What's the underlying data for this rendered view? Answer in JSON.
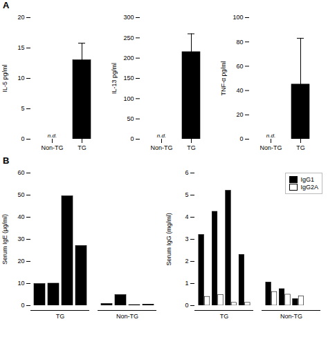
{
  "chart_data": [
    {
      "type": "bar",
      "title": "A",
      "ylabel": "IL-5 pg/ml",
      "categories": [
        "Non-TG",
        "TG"
      ],
      "values": [
        0,
        13
      ],
      "errors": [
        0,
        2.8
      ],
      "color": "#000000",
      "ylim": [
        0,
        20
      ],
      "yticks": [
        0,
        5,
        10,
        15,
        20
      ],
      "annotations": [
        {
          "text": "n.d.",
          "x": "Non-TG"
        }
      ]
    },
    {
      "type": "bar",
      "ylabel": "IL-13 pg/ml",
      "categories": [
        "Non-TG",
        "TG"
      ],
      "values": [
        0,
        215
      ],
      "errors": [
        0,
        45
      ],
      "color": "#000000",
      "ylim": [
        0,
        300
      ],
      "yticks": [
        0,
        50,
        100,
        150,
        200,
        250,
        300
      ],
      "annotations": [
        {
          "text": "n.d.",
          "x": "Non-TG"
        }
      ]
    },
    {
      "type": "bar",
      "ylabel": "TNF-α pg/ml",
      "categories": [
        "Non-TG",
        "TG"
      ],
      "values": [
        0,
        45
      ],
      "errors": [
        0,
        38
      ],
      "color": "#000000",
      "ylim": [
        0,
        100
      ],
      "yticks": [
        0,
        20,
        40,
        60,
        80,
        100
      ],
      "annotations": [
        {
          "text": "n.d.",
          "x": "Non-TG"
        }
      ]
    },
    {
      "type": "bar",
      "title": "B",
      "ylabel": "Serum IgE (μg/ml)",
      "categories": [
        null,
        null,
        null,
        null,
        null,
        null,
        null,
        null
      ],
      "group": [
        "TG",
        "TG",
        "TG",
        "TG",
        "Non-TG",
        "Non-TG",
        "Non-TG",
        "Non-TG"
      ],
      "values": [
        9.8,
        10.0,
        49.5,
        27.0,
        0.8,
        4.8,
        0.3,
        0.5
      ],
      "color": "#000000",
      "ylim": [
        0,
        60
      ],
      "yticks": [
        0,
        10,
        20,
        30,
        40,
        50,
        60
      ],
      "tick_labels": "y"
    },
    {
      "type": "bar",
      "ylabel": "Serum IgG (mg/ml)",
      "categories": [
        null,
        null,
        null,
        null,
        null,
        null,
        null
      ],
      "group": [
        "TG",
        "TG",
        "TG",
        "TG",
        "Non-TG",
        "Non-TG",
        "Non-TG"
      ],
      "series": [
        {
          "name": "IgG1",
          "color": "#000000",
          "values": [
            3.2,
            4.25,
            5.2,
            2.3,
            1.05,
            0.75,
            0.3
          ]
        },
        {
          "name": "IgG2A",
          "color": "#ffffff",
          "values": [
            0.4,
            0.48,
            0.13,
            0.13,
            0.62,
            0.5,
            0.42
          ]
        }
      ],
      "ylim": [
        0,
        6
      ],
      "yticks": [
        0,
        1,
        2,
        3,
        4,
        5,
        6
      ],
      "legend": "upper right",
      "tick_labels": "y"
    }
  ]
}
